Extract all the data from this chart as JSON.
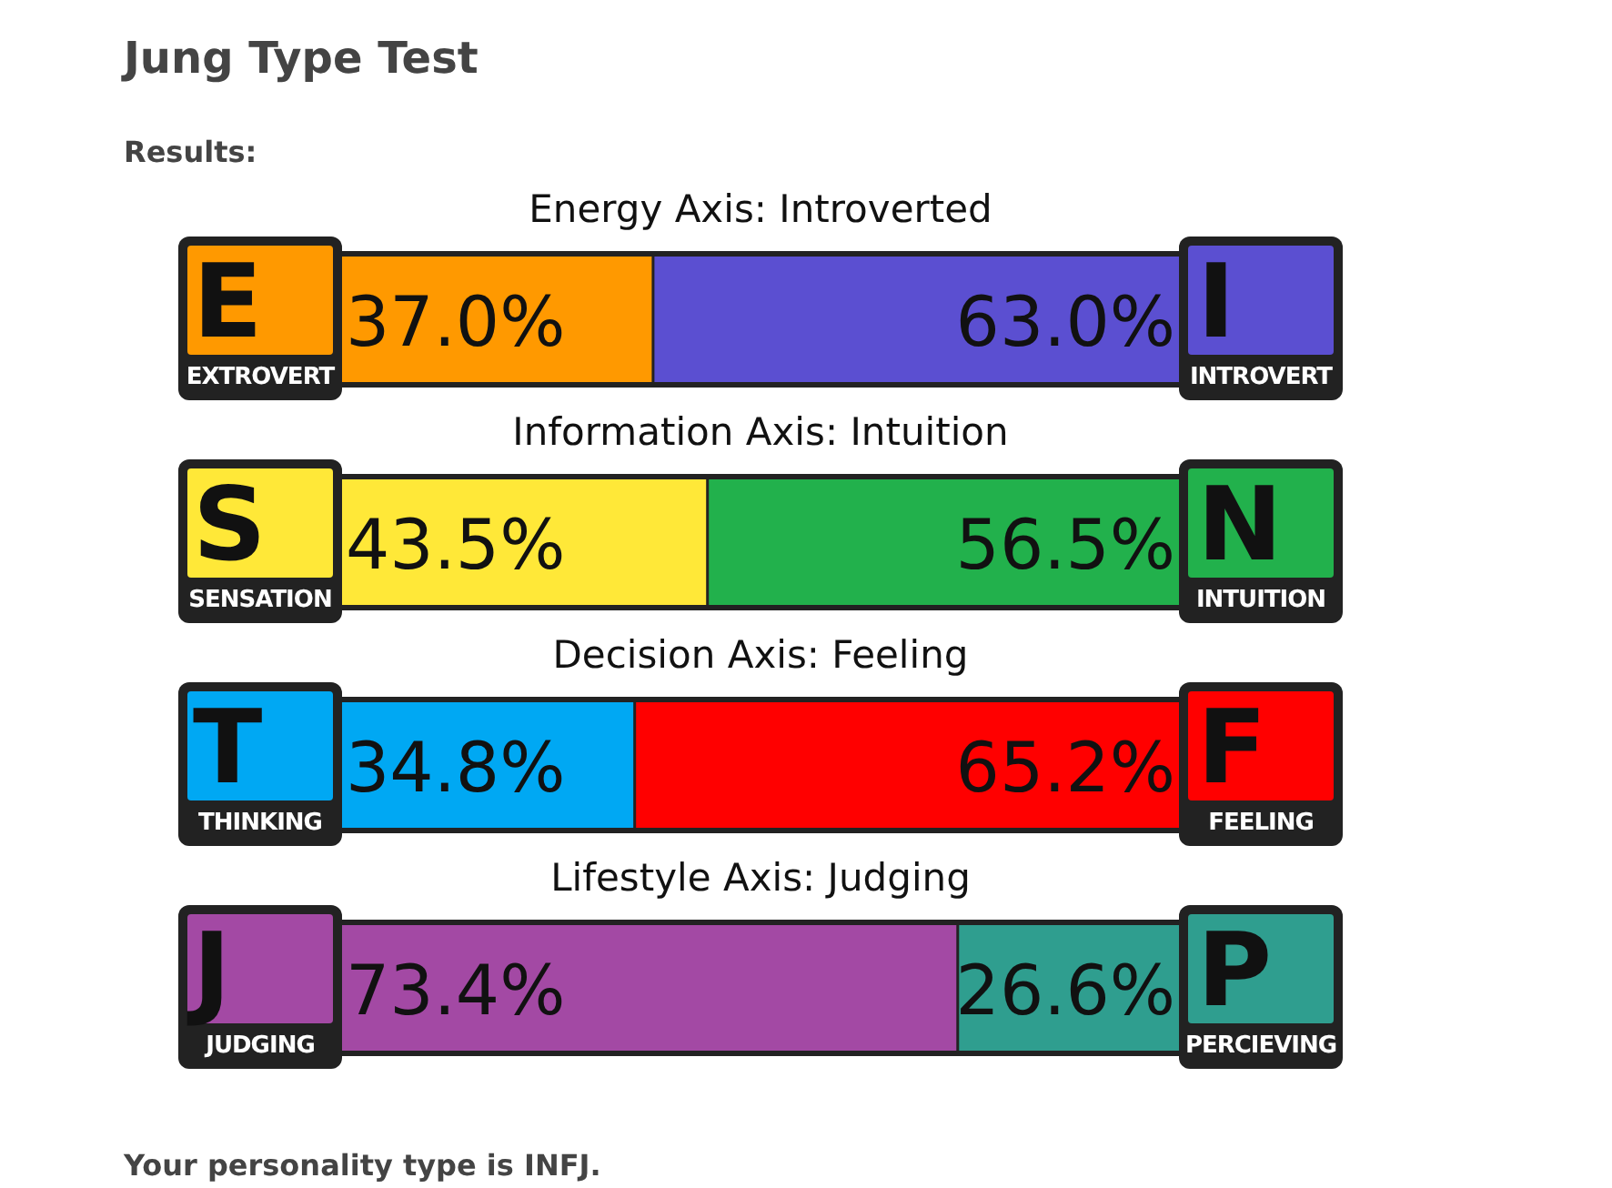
{
  "chart_data": [
    {
      "type": "other",
      "title": "Jung Type Test",
      "subtitle": "Results:",
      "annotations": [
        "Your personality type is INFJ."
      ]
    },
    {
      "type": "bar",
      "orientation": "horizontal",
      "stacked": true,
      "title": "Energy Axis: Introverted",
      "categories": [
        null
      ],
      "xlim": [
        0,
        100
      ],
      "annotations": [
        "E",
        "I"
      ],
      "series": [
        {
          "name": "EXTROVERT",
          "color": "#ff9900",
          "values": [
            37.0
          ],
          "value_labels": [
            "37.0%"
          ]
        },
        {
          "name": "INTROVERT",
          "color": "#5b4fd1",
          "values": [
            63.0
          ],
          "value_labels": [
            "63.0%"
          ]
        }
      ]
    },
    {
      "type": "bar",
      "orientation": "horizontal",
      "stacked": true,
      "title": "Information Axis: Intuition",
      "categories": [
        null
      ],
      "xlim": [
        0,
        100
      ],
      "annotations": [
        "S",
        "N"
      ],
      "series": [
        {
          "name": "SENSATION",
          "color": "#ffe838",
          "values": [
            43.5
          ],
          "value_labels": [
            "43.5%"
          ]
        },
        {
          "name": "INTUITION",
          "color": "#22b14c",
          "values": [
            56.5
          ],
          "value_labels": [
            "56.5%"
          ]
        }
      ]
    },
    {
      "type": "bar",
      "orientation": "horizontal",
      "stacked": true,
      "title": "Decision Axis: Feeling",
      "categories": [
        null
      ],
      "xlim": [
        0,
        100
      ],
      "annotations": [
        "T",
        "F"
      ],
      "series": [
        {
          "name": "THINKING",
          "color": "#00a8f3",
          "values": [
            34.8
          ],
          "value_labels": [
            "34.8%"
          ]
        },
        {
          "name": "FEELING",
          "color": "#ff0000",
          "values": [
            65.2
          ],
          "value_labels": [
            "65.2%"
          ]
        }
      ]
    },
    {
      "type": "bar",
      "orientation": "horizontal",
      "stacked": true,
      "title": "Lifestyle Axis: Judging",
      "categories": [
        null
      ],
      "xlim": [
        0,
        100
      ],
      "annotations": [
        "J",
        "P"
      ],
      "series": [
        {
          "name": "JUDGING",
          "color": "#a349a4",
          "values": [
            73.4
          ],
          "value_labels": [
            "73.4%"
          ]
        },
        {
          "name": "PERCIEVING",
          "color": "#2f9e8f",
          "values": [
            26.6
          ],
          "value_labels": [
            "26.6%"
          ]
        }
      ]
    }
  ]
}
